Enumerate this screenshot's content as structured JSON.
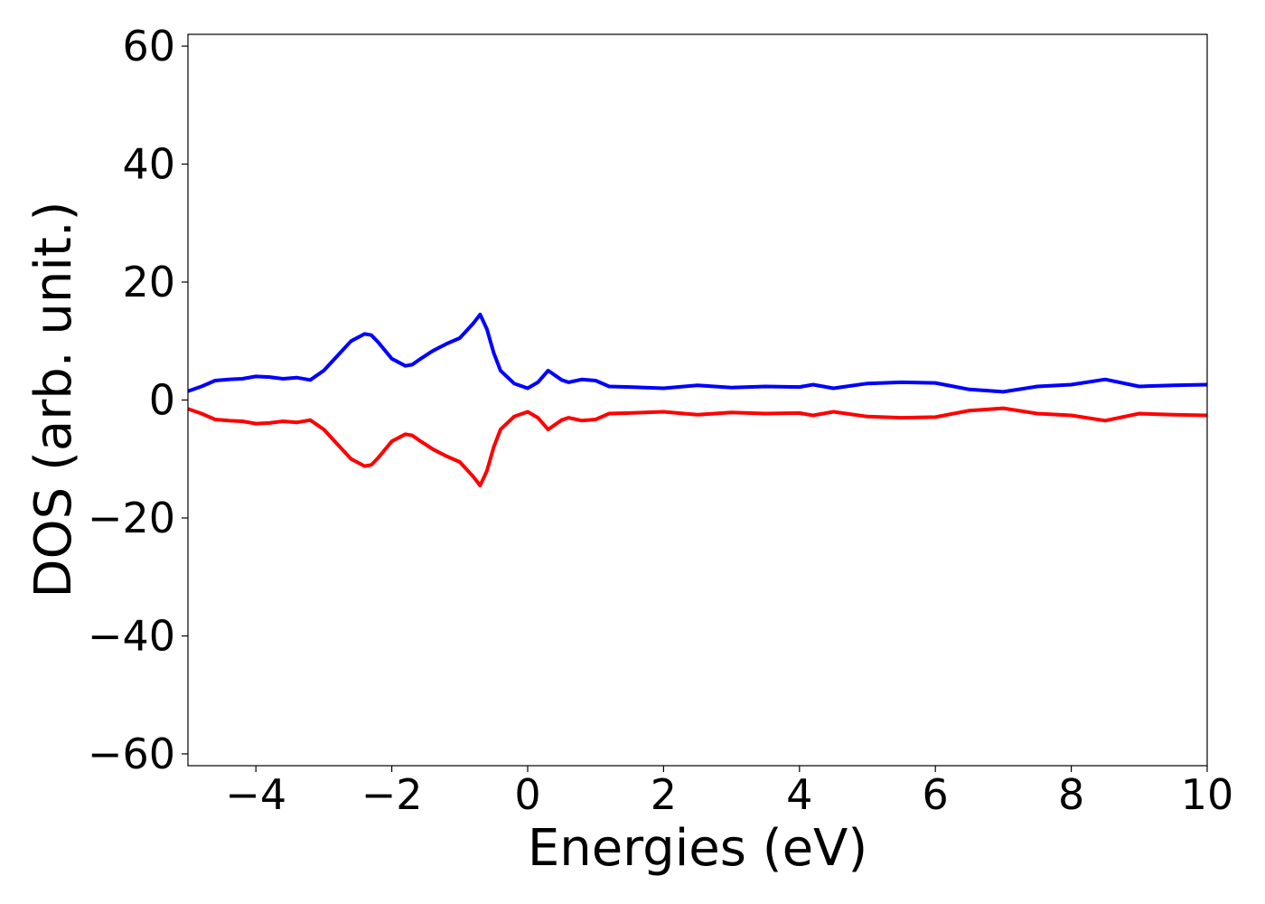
{
  "chart_data": {
    "type": "line",
    "title": "",
    "xlabel": "Energies (eV)",
    "ylabel": "DOS (arb. unit.)",
    "xlim": [
      -5,
      10
    ],
    "ylim": [
      -62,
      62
    ],
    "xticks": [
      -4,
      -2,
      0,
      2,
      4,
      6,
      8,
      10
    ],
    "xtick_labels": [
      "−4",
      "−2",
      "0",
      "2",
      "4",
      "6",
      "8",
      "10"
    ],
    "yticks": [
      60,
      40,
      20,
      0,
      -20,
      -40,
      -60
    ],
    "ytick_labels": [
      "60",
      "40",
      "20",
      "0",
      "−20",
      "−40",
      "−60"
    ],
    "grid": false,
    "legend": "none",
    "series": [
      {
        "color": "#0000ff",
        "x": [
          -5.0,
          -4.8,
          -4.6,
          -4.4,
          -4.2,
          -4.0,
          -3.8,
          -3.6,
          -3.4,
          -3.2,
          -3.0,
          -2.8,
          -2.6,
          -2.4,
          -2.3,
          -2.2,
          -2.0,
          -1.8,
          -1.7,
          -1.6,
          -1.4,
          -1.2,
          -1.0,
          -0.8,
          -0.7,
          -0.6,
          -0.5,
          -0.4,
          -0.2,
          0.0,
          0.15,
          0.3,
          0.5,
          0.6,
          0.8,
          1.0,
          1.2,
          1.5,
          2.0,
          2.5,
          3.0,
          3.5,
          4.0,
          4.2,
          4.5,
          5.0,
          5.5,
          6.0,
          6.5,
          7.0,
          7.5,
          8.0,
          8.5,
          9.0,
          9.5,
          10.0
        ],
        "y": [
          1.5,
          2.3,
          3.3,
          3.5,
          3.6,
          4.0,
          3.9,
          3.6,
          3.8,
          3.4,
          5.0,
          7.5,
          10.0,
          11.2,
          11.0,
          9.8,
          7.0,
          5.8,
          6.0,
          6.8,
          8.3,
          9.5,
          10.5,
          13.0,
          14.5,
          12.0,
          8.0,
          5.0,
          2.8,
          2.0,
          3.0,
          5.0,
          3.4,
          3.0,
          3.5,
          3.3,
          2.3,
          2.2,
          2.0,
          2.5,
          2.1,
          2.3,
          2.2,
          2.6,
          2.0,
          2.8,
          3.0,
          2.9,
          1.8,
          1.4,
          2.3,
          2.6,
          3.5,
          2.3,
          2.5,
          2.6
        ]
      },
      {
        "color": "#ff0000",
        "x": [
          -5.0,
          -4.8,
          -4.6,
          -4.4,
          -4.2,
          -4.0,
          -3.8,
          -3.6,
          -3.4,
          -3.2,
          -3.0,
          -2.8,
          -2.6,
          -2.4,
          -2.3,
          -2.2,
          -2.0,
          -1.8,
          -1.7,
          -1.6,
          -1.4,
          -1.2,
          -1.0,
          -0.8,
          -0.7,
          -0.6,
          -0.5,
          -0.4,
          -0.2,
          0.0,
          0.15,
          0.3,
          0.5,
          0.6,
          0.8,
          1.0,
          1.2,
          1.5,
          2.0,
          2.5,
          3.0,
          3.5,
          4.0,
          4.2,
          4.5,
          5.0,
          5.5,
          6.0,
          6.5,
          7.0,
          7.5,
          8.0,
          8.5,
          9.0,
          9.5,
          10.0
        ],
        "y": [
          -1.5,
          -2.3,
          -3.3,
          -3.5,
          -3.6,
          -4.0,
          -3.9,
          -3.6,
          -3.8,
          -3.4,
          -5.0,
          -7.5,
          -10.0,
          -11.2,
          -11.0,
          -9.8,
          -7.0,
          -5.8,
          -6.0,
          -6.8,
          -8.3,
          -9.5,
          -10.5,
          -13.0,
          -14.5,
          -12.0,
          -8.0,
          -5.0,
          -2.8,
          -2.0,
          -3.0,
          -5.0,
          -3.4,
          -3.0,
          -3.5,
          -3.3,
          -2.3,
          -2.2,
          -2.0,
          -2.5,
          -2.1,
          -2.3,
          -2.2,
          -2.6,
          -2.0,
          -2.8,
          -3.0,
          -2.9,
          -1.8,
          -1.4,
          -2.3,
          -2.6,
          -3.5,
          -2.3,
          -2.5,
          -2.6
        ]
      }
    ]
  }
}
